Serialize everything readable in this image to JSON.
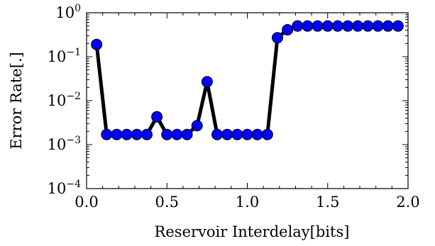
{
  "chart_data": {
    "type": "line",
    "title": "",
    "xlabel": "Reservoir Interdelay[bits]",
    "ylabel": "Error Rate[.]",
    "xlim": [
      0.0,
      2.0
    ],
    "ylim": [
      0.0001,
      1
    ],
    "yscale": "log",
    "grid": false,
    "legend": "none",
    "x_ticks": [
      "0.0",
      "0.5",
      "1.0",
      "1.5",
      "2.0"
    ],
    "y_ticks": [
      {
        "base": "10",
        "exp": "−4",
        "value": 0.0001
      },
      {
        "base": "10",
        "exp": "−3",
        "value": 0.001
      },
      {
        "base": "10",
        "exp": "−2",
        "value": 0.01
      },
      {
        "base": "10",
        "exp": "−1",
        "value": 0.1
      },
      {
        "base": "10",
        "exp": "0",
        "value": 1
      }
    ],
    "line_color": "#000000",
    "marker_color": "#0000ff",
    "series": [
      {
        "x": [
          0.0625,
          0.125,
          0.1875,
          0.25,
          0.3125,
          0.375,
          0.4375,
          0.5,
          0.5625,
          0.625,
          0.6875,
          0.75,
          0.8125,
          0.875,
          0.9375,
          1.0,
          1.0625,
          1.125,
          1.1875,
          1.25,
          1.3125,
          1.375,
          1.4375,
          1.5,
          1.5625,
          1.625,
          1.6875,
          1.75,
          1.8125,
          1.875,
          1.9375
        ],
        "y": [
          0.19,
          0.0017,
          0.0017,
          0.0017,
          0.0017,
          0.0017,
          0.0043,
          0.0017,
          0.0017,
          0.0017,
          0.0027,
          0.027,
          0.0017,
          0.0017,
          0.0017,
          0.0017,
          0.0017,
          0.0017,
          0.27,
          0.41,
          0.5,
          0.5,
          0.5,
          0.5,
          0.5,
          0.5,
          0.5,
          0.5,
          0.5,
          0.5,
          0.5
        ]
      }
    ]
  }
}
